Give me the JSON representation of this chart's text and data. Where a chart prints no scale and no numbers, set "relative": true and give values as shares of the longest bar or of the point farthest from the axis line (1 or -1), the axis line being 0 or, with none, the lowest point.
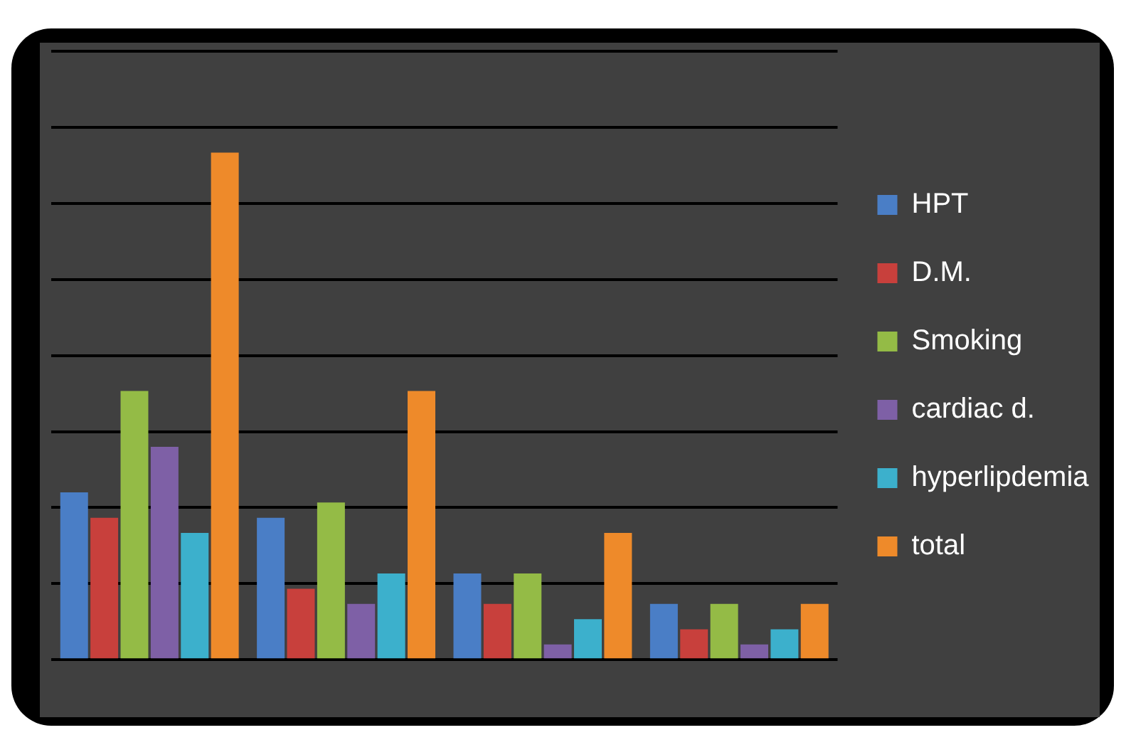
{
  "chart_data": {
    "type": "bar",
    "relative": true,
    "grid": "y",
    "legend": "right",
    "categories": [
      null,
      null,
      null,
      null
    ],
    "series": [
      {
        "name": "HPT",
        "color": "#4a7ec6",
        "values": [
          0.33,
          0.28,
          0.17,
          0.11
        ]
      },
      {
        "name": "D.M.",
        "color": "#c8403c",
        "values": [
          0.28,
          0.14,
          0.11,
          0.06
        ]
      },
      {
        "name": "Smoking",
        "color": "#94bb46",
        "values": [
          0.53,
          0.31,
          0.17,
          0.11
        ]
      },
      {
        "name": "cardiac d.",
        "color": "#7e60a6",
        "values": [
          0.42,
          0.11,
          0.03,
          0.03
        ]
      },
      {
        "name": "hyperlipdemia",
        "color": "#3cb0cc",
        "values": [
          0.25,
          0.17,
          0.08,
          0.06
        ]
      },
      {
        "name": "total",
        "color": "#ee8a2a",
        "values": [
          1,
          0.53,
          0.25,
          0.11
        ]
      }
    ]
  }
}
